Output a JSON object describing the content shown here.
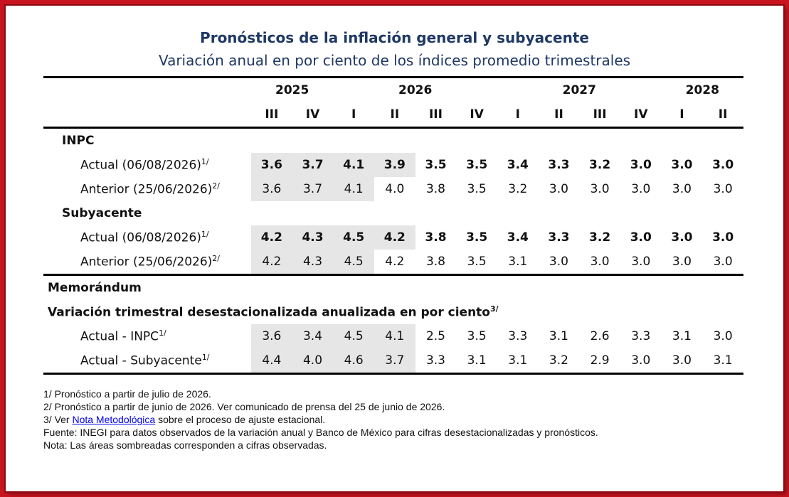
{
  "title": "Pronósticos de la inflación general y subyacente",
  "subtitle": "Variación anual en por ciento de los índices promedio trimestrales",
  "years": [
    "2025",
    "2026",
    "2027",
    "2028"
  ],
  "quarters": [
    "III",
    "IV",
    "I",
    "II",
    "III",
    "IV",
    "I",
    "II",
    "III",
    "IV",
    "I",
    "II"
  ],
  "sections": {
    "inpc": {
      "label": "INPC",
      "actual": {
        "label": "Actual (06/08/2026)",
        "sup": "1/",
        "values": [
          "3.6",
          "3.7",
          "4.1",
          "3.9",
          "3.5",
          "3.5",
          "3.4",
          "3.3",
          "3.2",
          "3.0",
          "3.0",
          "3.0"
        ]
      },
      "anterior": {
        "label": "Anterior (25/06/2026)",
        "sup": "2/",
        "values": [
          "3.6",
          "3.7",
          "4.1",
          "4.0",
          "3.8",
          "3.5",
          "3.2",
          "3.0",
          "3.0",
          "3.0",
          "3.0",
          "3.0"
        ]
      }
    },
    "subyacente": {
      "label": "Subyacente",
      "actual": {
        "label": "Actual (06/08/2026)",
        "sup": "1/",
        "values": [
          "4.2",
          "4.3",
          "4.5",
          "4.2",
          "3.8",
          "3.5",
          "3.4",
          "3.3",
          "3.2",
          "3.0",
          "3.0",
          "3.0"
        ]
      },
      "anterior": {
        "label": "Anterior (25/06/2026)",
        "sup": "2/",
        "values": [
          "4.2",
          "4.3",
          "4.5",
          "4.2",
          "3.8",
          "3.5",
          "3.1",
          "3.0",
          "3.0",
          "3.0",
          "3.0",
          "3.0"
        ]
      }
    },
    "memo": {
      "label": "Memorándum",
      "sublabel": "Variación trimestral desestacionalizada anualizada en por ciento",
      "sublabel_sup": "3/",
      "inpc": {
        "label": "Actual - INPC",
        "sup": "1/",
        "values": [
          "3.6",
          "3.4",
          "4.5",
          "4.1",
          "2.5",
          "3.5",
          "3.3",
          "3.1",
          "2.6",
          "3.3",
          "3.1",
          "3.0"
        ]
      },
      "sub": {
        "label": "Actual - Subyacente",
        "sup": "1/",
        "values": [
          "4.4",
          "4.0",
          "4.6",
          "3.7",
          "3.3",
          "3.1",
          "3.1",
          "3.2",
          "2.9",
          "3.0",
          "3.0",
          "3.1"
        ]
      }
    }
  },
  "notes": {
    "n1": "1/ Pronóstico a partir de julio de 2026.",
    "n2": "2/ Pronóstico a partir de junio de 2026. Ver comunicado de prensa del 25 de junio de 2026.",
    "n3_pre": "3/ Ver ",
    "n3_link": "Nota Metodológica",
    "n3_post": " sobre el proceso de ajuste estacional.",
    "fuente": "Fuente: INEGI para datos observados de la variación anual y Banco de México para cifras desestacionalizadas y pronósticos.",
    "nota": "Nota: Las áreas sombreadas corresponden a cifras observadas."
  },
  "colors": {
    "frame": "#c8141e",
    "title": "#1f3864",
    "shade": "#e6e6e6",
    "link": "#0000ee"
  }
}
